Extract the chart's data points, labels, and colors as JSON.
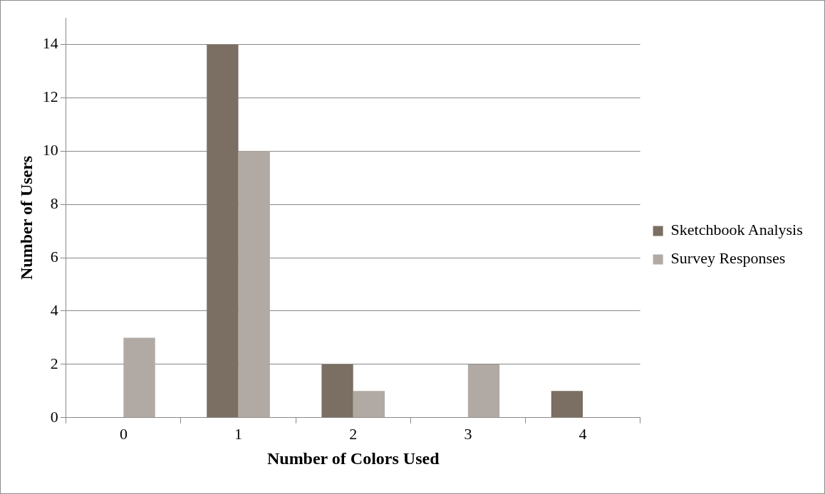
{
  "chart_data": {
    "type": "bar",
    "xlabel": "Number of Colors Used",
    "ylabel": "Number of Users",
    "categories": [
      "0",
      "1",
      "2",
      "3",
      "4"
    ],
    "series": [
      {
        "name": "Sketchbook Analysis",
        "color": "#7b6e62",
        "values": [
          0,
          14,
          2,
          0,
          1
        ]
      },
      {
        "name": "Survey Responses",
        "color": "#b1a9a3",
        "values": [
          3,
          10,
          1,
          2,
          0
        ]
      }
    ],
    "ylim": [
      0,
      15
    ],
    "yticks": [
      0,
      2,
      4,
      6,
      8,
      10,
      12,
      14
    ],
    "grid": "y",
    "legend": "right"
  }
}
